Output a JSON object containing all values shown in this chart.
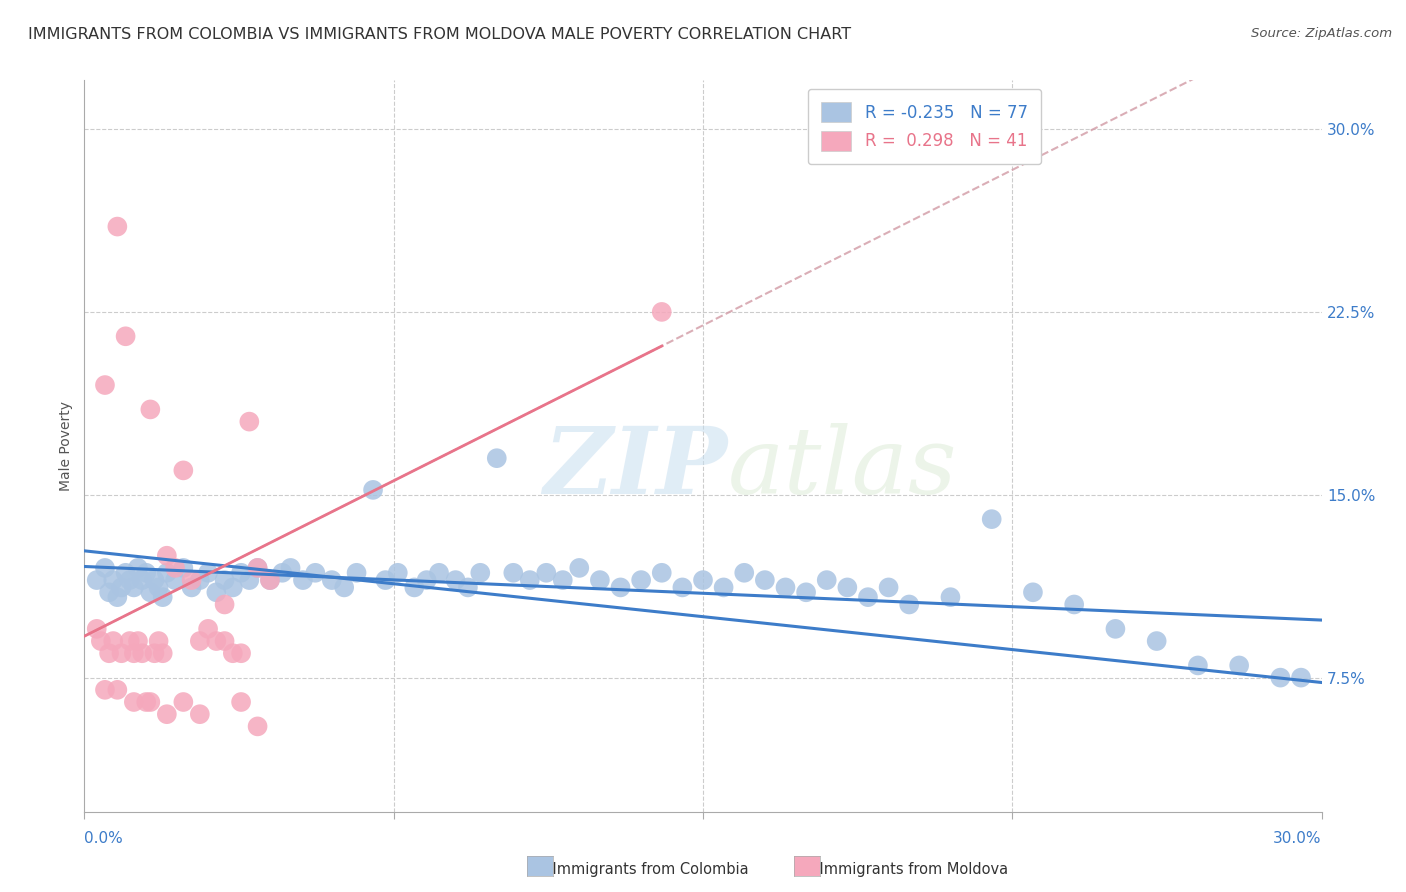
{
  "title": "IMMIGRANTS FROM COLOMBIA VS IMMIGRANTS FROM MOLDOVA MALE POVERTY CORRELATION CHART",
  "source": "Source: ZipAtlas.com",
  "ylabel": "Male Poverty",
  "right_yticks": [
    "7.5%",
    "15.0%",
    "22.5%",
    "30.0%"
  ],
  "right_ytick_vals": [
    0.075,
    0.15,
    0.225,
    0.3
  ],
  "xlim": [
    0.0,
    0.3
  ],
  "ylim": [
    0.02,
    0.32
  ],
  "colombia_color": "#aac4e2",
  "moldova_color": "#f5a8bc",
  "colombia_line_color": "#3d7cc9",
  "moldova_line_color": "#e8748a",
  "moldova_dash_color": "#e8b0bc",
  "colombia_R": -0.235,
  "colombia_N": 77,
  "moldova_R": 0.298,
  "moldova_N": 41,
  "colombia_scatter_x": [
    0.003,
    0.005,
    0.006,
    0.007,
    0.008,
    0.009,
    0.01,
    0.011,
    0.012,
    0.013,
    0.014,
    0.015,
    0.016,
    0.017,
    0.018,
    0.019,
    0.02,
    0.022,
    0.024,
    0.026,
    0.028,
    0.03,
    0.032,
    0.034,
    0.036,
    0.038,
    0.04,
    0.042,
    0.045,
    0.048,
    0.05,
    0.053,
    0.056,
    0.06,
    0.063,
    0.066,
    0.07,
    0.073,
    0.076,
    0.08,
    0.083,
    0.086,
    0.09,
    0.093,
    0.096,
    0.1,
    0.104,
    0.108,
    0.112,
    0.116,
    0.12,
    0.125,
    0.13,
    0.135,
    0.14,
    0.145,
    0.15,
    0.155,
    0.16,
    0.165,
    0.17,
    0.175,
    0.18,
    0.185,
    0.19,
    0.195,
    0.2,
    0.21,
    0.22,
    0.23,
    0.24,
    0.25,
    0.26,
    0.27,
    0.28,
    0.29,
    0.295
  ],
  "colombia_scatter_y": [
    0.115,
    0.12,
    0.11,
    0.115,
    0.108,
    0.112,
    0.118,
    0.115,
    0.112,
    0.12,
    0.115,
    0.118,
    0.11,
    0.115,
    0.112,
    0.108,
    0.118,
    0.115,
    0.12,
    0.112,
    0.115,
    0.118,
    0.11,
    0.115,
    0.112,
    0.118,
    0.115,
    0.12,
    0.115,
    0.118,
    0.12,
    0.115,
    0.118,
    0.115,
    0.112,
    0.118,
    0.152,
    0.115,
    0.118,
    0.112,
    0.115,
    0.118,
    0.115,
    0.112,
    0.118,
    0.165,
    0.118,
    0.115,
    0.118,
    0.115,
    0.12,
    0.115,
    0.112,
    0.115,
    0.118,
    0.112,
    0.115,
    0.112,
    0.118,
    0.115,
    0.112,
    0.11,
    0.115,
    0.112,
    0.108,
    0.112,
    0.105,
    0.108,
    0.14,
    0.11,
    0.105,
    0.095,
    0.09,
    0.08,
    0.08,
    0.075,
    0.075
  ],
  "moldova_scatter_x": [
    0.003,
    0.004,
    0.005,
    0.006,
    0.007,
    0.008,
    0.009,
    0.01,
    0.011,
    0.012,
    0.013,
    0.014,
    0.015,
    0.016,
    0.017,
    0.018,
    0.019,
    0.02,
    0.022,
    0.024,
    0.026,
    0.028,
    0.03,
    0.032,
    0.034,
    0.036,
    0.038,
    0.04,
    0.042,
    0.045,
    0.005,
    0.008,
    0.012,
    0.016,
    0.02,
    0.024,
    0.028,
    0.034,
    0.038,
    0.042,
    0.14
  ],
  "moldova_scatter_y": [
    0.095,
    0.09,
    0.195,
    0.085,
    0.09,
    0.26,
    0.085,
    0.215,
    0.09,
    0.085,
    0.09,
    0.085,
    0.065,
    0.185,
    0.085,
    0.09,
    0.085,
    0.125,
    0.12,
    0.16,
    0.115,
    0.09,
    0.095,
    0.09,
    0.09,
    0.085,
    0.085,
    0.18,
    0.12,
    0.115,
    0.07,
    0.07,
    0.065,
    0.065,
    0.06,
    0.065,
    0.06,
    0.105,
    0.065,
    0.055,
    0.225
  ],
  "watermark_zip": "ZIP",
  "watermark_atlas": "atlas",
  "legend_box_colombia": "#aac4e2",
  "legend_box_moldova": "#f5a8bc",
  "grid_color": "#cccccc",
  "tick_color": "#aaaaaa",
  "background_color": "#ffffff",
  "title_fontsize": 11.5,
  "legend_fontsize": 12,
  "axis_label_fontsize": 10,
  "tick_fontsize": 11
}
